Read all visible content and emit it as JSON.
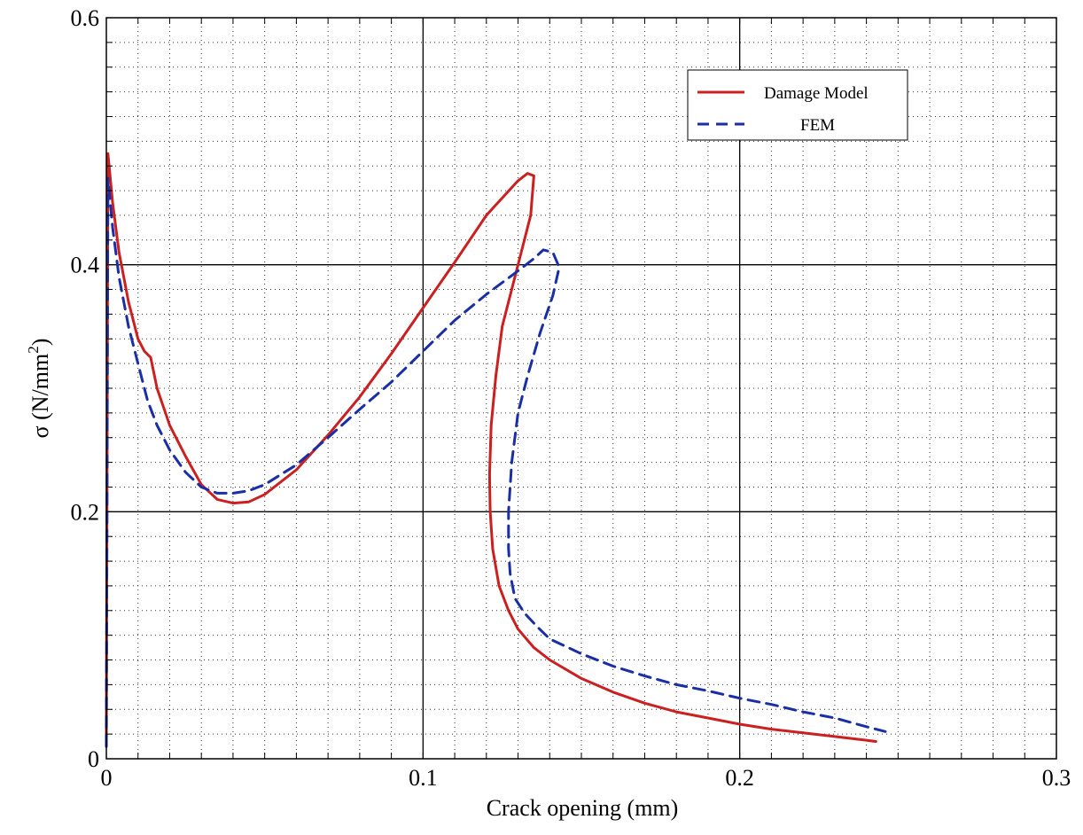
{
  "chart_data": {
    "type": "line",
    "xlabel": "Crack opening (mm)",
    "ylabel_main": "σ  (N/mm",
    "ylabel_sup": "2",
    "ylabel_close": ")",
    "xlim": [
      0,
      0.3
    ],
    "ylim": [
      0,
      0.6
    ],
    "x_ticks": [
      0,
      0.1,
      0.2,
      0.3
    ],
    "x_tick_labels": [
      "0",
      "0.1",
      "0.2",
      "0.3"
    ],
    "y_ticks": [
      0,
      0.2,
      0.4,
      0.6
    ],
    "y_tick_labels": [
      "0",
      "0.2",
      "0.4",
      "0.6"
    ],
    "grid": {
      "major": true,
      "minor": true,
      "minor_x_step": 0.01,
      "minor_y_step": 0.02
    },
    "legend": {
      "position": "top-right"
    },
    "series": [
      {
        "name": "Damage Model",
        "color": "#cc1f1f",
        "dash": "solid",
        "x": [
          0,
          0.0005,
          0.002,
          0.004,
          0.007,
          0.01,
          0.012,
          0.014,
          0.016,
          0.02,
          0.025,
          0.03,
          0.035,
          0.04,
          0.045,
          0.05,
          0.06,
          0.07,
          0.08,
          0.09,
          0.1,
          0.11,
          0.12,
          0.13,
          0.133,
          0.135,
          0.134,
          0.131,
          0.128,
          0.125,
          0.123,
          0.1215,
          0.121,
          0.1212,
          0.122,
          0.124,
          0.127,
          0.13,
          0.135,
          0.14,
          0.15,
          0.16,
          0.17,
          0.18,
          0.19,
          0.2,
          0.21,
          0.22,
          0.23,
          0.24,
          0.243
        ],
        "y": [
          0.01,
          0.49,
          0.45,
          0.41,
          0.37,
          0.34,
          0.33,
          0.325,
          0.3,
          0.27,
          0.245,
          0.222,
          0.21,
          0.207,
          0.208,
          0.214,
          0.234,
          0.262,
          0.293,
          0.328,
          0.365,
          0.402,
          0.44,
          0.468,
          0.474,
          0.472,
          0.44,
          0.41,
          0.38,
          0.35,
          0.31,
          0.27,
          0.23,
          0.2,
          0.17,
          0.14,
          0.12,
          0.105,
          0.09,
          0.08,
          0.065,
          0.054,
          0.045,
          0.038,
          0.033,
          0.028,
          0.024,
          0.021,
          0.018,
          0.015,
          0.014
        ]
      },
      {
        "name": "FEM",
        "color": "#1a2fa6",
        "dash": "dashed",
        "x": [
          0,
          0.0005,
          0.002,
          0.004,
          0.007,
          0.01,
          0.013,
          0.016,
          0.02,
          0.025,
          0.03,
          0.035,
          0.04,
          0.045,
          0.05,
          0.06,
          0.07,
          0.08,
          0.09,
          0.1,
          0.11,
          0.12,
          0.13,
          0.135,
          0.138,
          0.141,
          0.143,
          0.141,
          0.137,
          0.133,
          0.13,
          0.128,
          0.127,
          0.127,
          0.1275,
          0.129,
          0.132,
          0.136,
          0.14,
          0.15,
          0.16,
          0.17,
          0.18,
          0.19,
          0.2,
          0.21,
          0.22,
          0.23,
          0.24,
          0.246
        ],
        "y": [
          0.01,
          0.47,
          0.43,
          0.39,
          0.35,
          0.32,
          0.29,
          0.27,
          0.25,
          0.232,
          0.22,
          0.215,
          0.215,
          0.217,
          0.222,
          0.238,
          0.26,
          0.283,
          0.305,
          0.33,
          0.355,
          0.376,
          0.395,
          0.405,
          0.412,
          0.41,
          0.398,
          0.375,
          0.345,
          0.31,
          0.28,
          0.24,
          0.2,
          0.17,
          0.15,
          0.13,
          0.118,
          0.107,
          0.097,
          0.085,
          0.075,
          0.067,
          0.06,
          0.055,
          0.049,
          0.044,
          0.038,
          0.033,
          0.026,
          0.022
        ]
      }
    ]
  }
}
